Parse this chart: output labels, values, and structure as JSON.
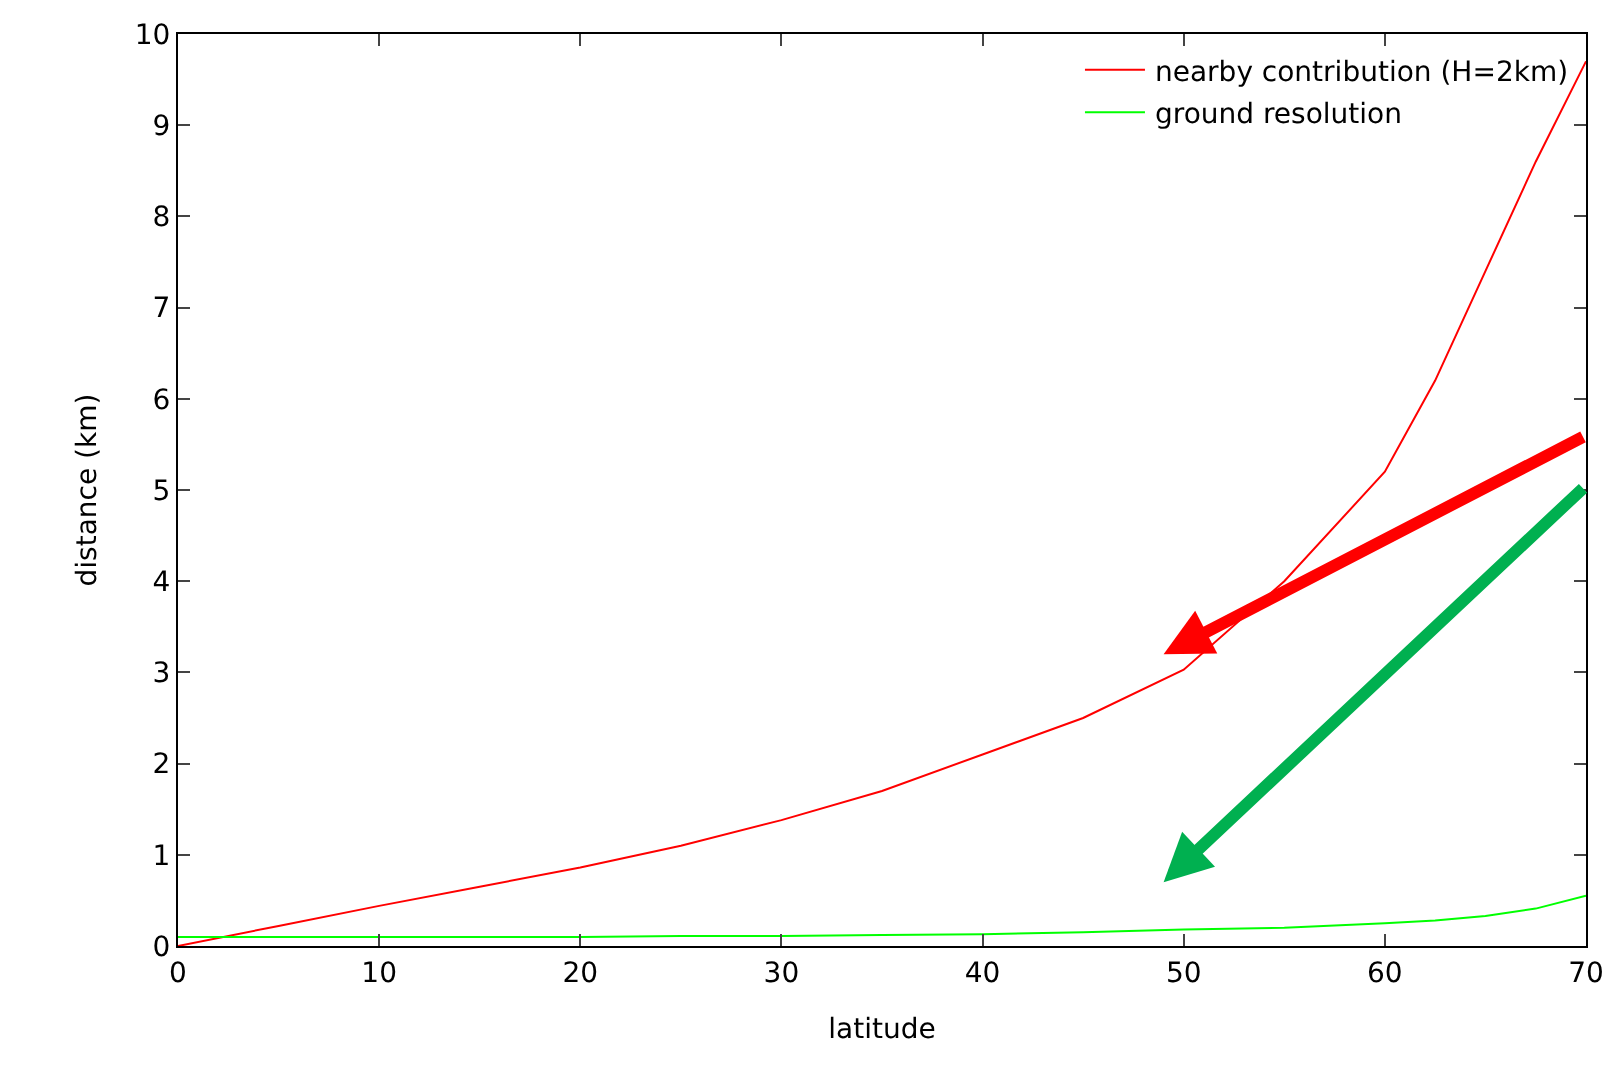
{
  "chart_data": {
    "type": "line",
    "xlabel": "latitude",
    "ylabel": "distance (km)",
    "x": [
      0,
      5,
      10,
      15,
      20,
      25,
      30,
      35,
      40,
      45,
      50,
      55,
      60,
      62.5,
      65,
      67.5,
      70
    ],
    "series": [
      {
        "name": "nearby contribution (H=2km)",
        "color": "#ff0000",
        "values": [
          0,
          0.22,
          0.44,
          0.65,
          0.86,
          1.1,
          1.38,
          1.7,
          2.1,
          2.5,
          3.03,
          4.0,
          5.2,
          6.2,
          7.4,
          8.6,
          9.7
        ]
      },
      {
        "name": "ground resolution",
        "color": "#00ff00",
        "values": [
          0.1,
          0.1,
          0.1,
          0.1,
          0.1,
          0.11,
          0.11,
          0.12,
          0.13,
          0.15,
          0.18,
          0.2,
          0.25,
          0.28,
          0.33,
          0.41,
          0.55
        ]
      }
    ],
    "xlim": [
      0,
      70
    ],
    "xticks": [
      0,
      10,
      20,
      30,
      40,
      50,
      60,
      70
    ],
    "ylim": [
      0,
      10
    ],
    "yticks": [
      0,
      1,
      2,
      3,
      4,
      5,
      6,
      7,
      8,
      9,
      10
    ],
    "legend": "top right",
    "marker": "none",
    "line_style": "solid"
  }
}
